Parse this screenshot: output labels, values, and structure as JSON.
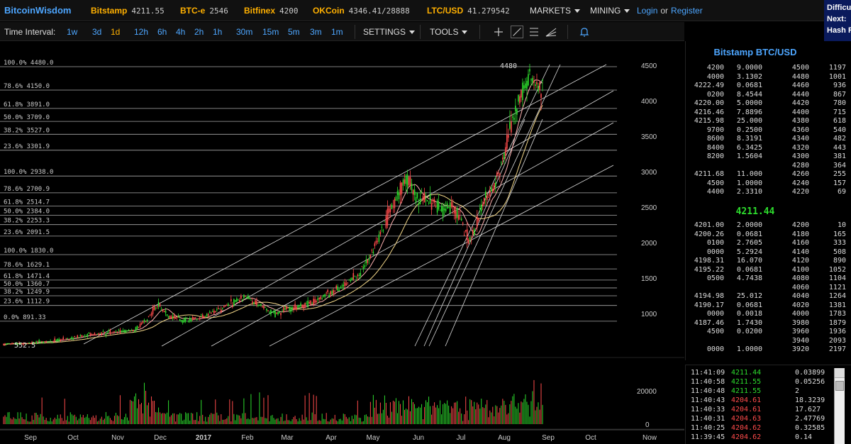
{
  "topbar": {
    "brand": "BitcoinWisdom",
    "tickers": [
      {
        "exchange": "Bitstamp",
        "price": "4211.55"
      },
      {
        "exchange": "BTC-e",
        "price": "2546"
      },
      {
        "exchange": "Bitfinex",
        "price": "4200"
      },
      {
        "exchange": "OKCoin",
        "price": "4346.41/28888"
      },
      {
        "exchange": "LTC/USD",
        "price": "41.279542"
      }
    ],
    "markets_label": "MARKETS",
    "mining_label": "MINING",
    "login_label": "Login",
    "or_label": "or",
    "register_label": "Register"
  },
  "side_panel": {
    "line1": "Difficu",
    "line2": "Next:",
    "line3": "Hash R"
  },
  "toolbar": {
    "time_interval_label": "Time Interval:",
    "intervals": [
      "1w",
      "3d",
      "1d",
      "12h",
      "6h",
      "4h",
      "2h",
      "1h",
      "30m",
      "15m",
      "5m",
      "3m",
      "1m"
    ],
    "active_interval": "1d",
    "settings_label": "SETTINGS",
    "tools_label": "TOOLS",
    "tool_icons": [
      "crosshair-icon",
      "line-tool-icon",
      "horizontal-lines-icon",
      "fan-tool-icon",
      "alert-bell-icon"
    ]
  },
  "chart_data": {
    "type": "candlestick",
    "price_axis_ticks": [
      "4500",
      "4000",
      "3500",
      "3000",
      "2500",
      "2000",
      "1500",
      "1000"
    ],
    "volume_axis_ticks": [
      "20000",
      "0"
    ],
    "x_tick_labels": [
      "Sep",
      "Oct",
      "Nov",
      "Dec",
      "2017",
      "Feb",
      "Mar",
      "Apr",
      "May",
      "Jun",
      "Jul",
      "Aug",
      "Sep",
      "Oct",
      "Now"
    ],
    "high_marker": "4480",
    "low_marker": "552.5",
    "fib_levels": [
      {
        "label": "100.0% 4480.0",
        "price": 4480
      },
      {
        "label": "78.6% 4150.0",
        "price": 4150
      },
      {
        "label": "61.8% 3891.0",
        "price": 3891
      },
      {
        "label": "50.0% 3709.0",
        "price": 3709
      },
      {
        "label": "38.2% 3527.0",
        "price": 3527
      },
      {
        "label": "23.6% 3301.9",
        "price": 3301.9
      },
      {
        "label": "100.0% 2938.0",
        "price": 2938
      },
      {
        "label": "78.6% 2700.9",
        "price": 2700.9
      },
      {
        "label": "61.8% 2514.7",
        "price": 2514.7
      },
      {
        "label": "50.0% 2384.0",
        "price": 2384
      },
      {
        "label": "38.2% 2253.3",
        "price": 2253.3
      },
      {
        "label": "23.6% 2091.5",
        "price": 2091.5
      },
      {
        "label": "100.0% 1830.0",
        "price": 1830
      },
      {
        "label": "78.6% 1629.1",
        "price": 1629.1
      },
      {
        "label": "61.8% 1471.4",
        "price": 1471.4
      },
      {
        "label": "50.0% 1360.7",
        "price": 1360.7
      },
      {
        "label": "38.2% 1249.9",
        "price": 1249.9
      },
      {
        "label": "23.6% 1112.9",
        "price": 1112.9
      },
      {
        "label": "0.0% 891.33",
        "price": 891.33
      }
    ],
    "price_path": [
      [
        0,
        570
      ],
      [
        0.05,
        580
      ],
      [
        0.1,
        600
      ],
      [
        0.15,
        650
      ],
      [
        0.2,
        700
      ],
      [
        0.25,
        740
      ],
      [
        0.3,
        760
      ],
      [
        0.33,
        900
      ],
      [
        0.36,
        1150
      ],
      [
        0.38,
        960
      ],
      [
        0.42,
        900
      ],
      [
        0.46,
        950
      ],
      [
        0.5,
        1050
      ],
      [
        0.53,
        1150
      ],
      [
        0.56,
        1250
      ],
      [
        0.6,
        1100
      ],
      [
        0.63,
        1000
      ],
      [
        0.66,
        1060
      ],
      [
        0.7,
        1120
      ],
      [
        0.73,
        1200
      ],
      [
        0.76,
        1300
      ],
      [
        0.79,
        1400
      ],
      [
        0.82,
        1550
      ],
      [
        0.85,
        1800
      ],
      [
        0.88,
        2200
      ],
      [
        0.9,
        2500
      ],
      [
        0.92,
        2750
      ],
      [
        0.94,
        2900
      ],
      [
        0.96,
        2650
      ],
      [
        0.98,
        2600
      ],
      [
        1.0,
        2550
      ],
      [
        1.02,
        2450
      ],
      [
        1.04,
        2500
      ],
      [
        1.06,
        2350
      ],
      [
        1.08,
        2000
      ],
      [
        1.1,
        2300
      ],
      [
        1.12,
        2700
      ],
      [
        1.14,
        2800
      ],
      [
        1.16,
        3200
      ],
      [
        1.18,
        3700
      ],
      [
        1.2,
        4100
      ],
      [
        1.22,
        4400
      ],
      [
        1.24,
        4200
      ],
      [
        1.25,
        4211
      ]
    ]
  },
  "orderbook": {
    "title": "Bitstamp BTC/USD",
    "last_price": "4211.44",
    "asks": [
      [
        "4200",
        "9.0000",
        "4500",
        "1197"
      ],
      [
        "4000",
        "3.1302",
        "4480",
        "1001"
      ],
      [
        "4222.49",
        "0.0681",
        "4460",
        "936"
      ],
      [
        "0200",
        "8.4544",
        "4440",
        "867"
      ],
      [
        "4220.00",
        "5.0000",
        "4420",
        "780"
      ],
      [
        "4216.46",
        "7.8896",
        "4400",
        "715"
      ],
      [
        "4215.98",
        "25.000",
        "4380",
        "618"
      ],
      [
        "9700",
        "0.2500",
        "4360",
        "540"
      ],
      [
        "8600",
        "8.3191",
        "4340",
        "482"
      ],
      [
        "8400",
        "6.3425",
        "4320",
        "443"
      ],
      [
        "8200",
        "1.5604",
        "4300",
        "381"
      ],
      [
        "",
        "",
        "4280",
        "364"
      ],
      [
        "4211.68",
        "11.000",
        "4260",
        "255"
      ],
      [
        "4500",
        "1.0000",
        "4240",
        "157"
      ],
      [
        "4400",
        "2.3310",
        "4220",
        "69"
      ]
    ],
    "bids": [
      [
        "4201.00",
        "2.0000",
        "4200",
        "10"
      ],
      [
        "4200.26",
        "0.0681",
        "4180",
        "165"
      ],
      [
        "0100",
        "2.7605",
        "4160",
        "333"
      ],
      [
        "0000",
        "5.2924",
        "4140",
        "508"
      ],
      [
        "4198.31",
        "16.070",
        "4120",
        "890"
      ],
      [
        "4195.22",
        "0.0681",
        "4100",
        "1052"
      ],
      [
        "0500",
        "4.7438",
        "4080",
        "1104"
      ],
      [
        "",
        "",
        "4060",
        "1121"
      ],
      [
        "4194.98",
        "25.012",
        "4040",
        "1264"
      ],
      [
        "4190.17",
        "0.0681",
        "4020",
        "1381"
      ],
      [
        "0000",
        "0.0018",
        "4000",
        "1783"
      ],
      [
        "4187.46",
        "1.7430",
        "3980",
        "1879"
      ],
      [
        "4500",
        "0.0200",
        "3960",
        "1936"
      ],
      [
        "",
        "",
        "3940",
        "2093"
      ],
      [
        "0000",
        "1.0000",
        "3920",
        "2197"
      ]
    ]
  },
  "trades": [
    {
      "time": "11:41:09",
      "price": "4211.44",
      "amount": "0.03899",
      "side": "buy"
    },
    {
      "time": "11:40:58",
      "price": "4211.55",
      "amount": "0.05256",
      "side": "buy"
    },
    {
      "time": "11:40:48",
      "price": "4211.55",
      "amount": "2",
      "side": "buy"
    },
    {
      "time": "11:40:43",
      "price": "4204.61",
      "amount": "18.3239",
      "side": "sell"
    },
    {
      "time": "11:40:33",
      "price": "4204.61",
      "amount": "17.627",
      "side": "sell"
    },
    {
      "time": "11:40:31",
      "price": "4204.63",
      "amount": "2.47769",
      "side": "sell"
    },
    {
      "time": "11:40:25",
      "price": "4204.62",
      "amount": "0.32585",
      "side": "sell"
    },
    {
      "time": "11:39:45",
      "price": "4204.62",
      "amount": "0.14",
      "side": "sell"
    }
  ],
  "colors": {
    "accent": "#4da6ff",
    "exchange": "#ffb000",
    "up": "#2ddc2d",
    "down": "#ff4b4b",
    "ma_yellow": "#f5d98a",
    "ma_pink": "#ffb0b0"
  }
}
